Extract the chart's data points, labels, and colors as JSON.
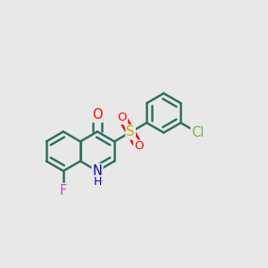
{
  "bg_color": "#e8e8e8",
  "bond_color": "#2d7060",
  "bond_width": 1.8,
  "atom_colors": {
    "O": "#ff0000",
    "N": "#0000cc",
    "F": "#cc44cc",
    "S": "#ccaa00",
    "Cl": "#7ab648",
    "C": "#2d7060"
  },
  "font_size": 9.5
}
